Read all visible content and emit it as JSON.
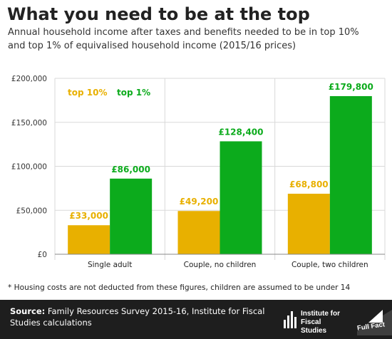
{
  "title": "What you need to be at the top",
  "subtitle": "Annual household income after taxes and benefits needed to be in top 10% and top 1% of equivalised household income (2015/16 prices)",
  "footnote": "* Housing costs are not deducted from these figures, children are assumed to be under 14",
  "source": {
    "label": "Source:",
    "text": " Family Resources Survey 2015-16, Institute for Fiscal Studies calculations"
  },
  "logos": {
    "ifs": "Institute for\nFiscal Studies",
    "fullfact": "Full Fact"
  },
  "chart_data": {
    "type": "bar",
    "categories": [
      "Single adult",
      "Couple, no children",
      "Couple, two children"
    ],
    "series": [
      {
        "name": "top 10%",
        "color": "#e8b000",
        "values": [
          33000,
          49200,
          68800
        ],
        "labels": [
          "£33,000",
          "£49,200",
          "£68,800"
        ]
      },
      {
        "name": "top 1%",
        "color": "#0cab1c",
        "values": [
          86000,
          128400,
          179800
        ],
        "labels": [
          "£86,000",
          "£128,400",
          "£179,800"
        ]
      }
    ],
    "ylim": [
      0,
      200000
    ],
    "y_ticks": [
      0,
      50000,
      100000,
      150000,
      200000
    ],
    "y_tick_labels": [
      "£0",
      "£50,000",
      "£100,000",
      "£150,000",
      "£200,000"
    ],
    "grid": true,
    "legend": "top-left"
  }
}
